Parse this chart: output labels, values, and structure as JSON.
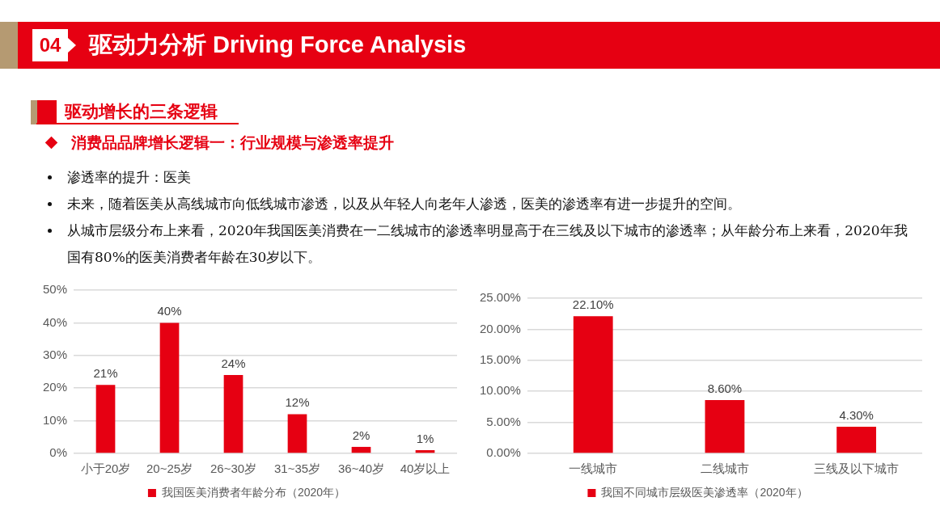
{
  "chart_data": [
    {
      "type": "bar",
      "title": "驱动力分析 Driving Force Analysis",
      "annotations": [
        "04",
        "驱动增长的三条逻辑",
        "消费品品牌增长逻辑一：行业规模与渗透率提升",
        "渗透率的提升：医美",
        "未来，随着医美从高线城市向低线城市渗透，以及从年轻人向老年人渗透，医美的渗透率有进一步提升的空间。",
        "从城市层级分布上来看，2020年我国医美消费在一二线城市的渗透率明显高于在三线及以下城市的渗透率；从年龄分布上来看，2020年我国有80%的医美消费者年龄在30岁以下。"
      ],
      "categories": [
        "小于20岁",
        "20~25岁",
        "26~30岁",
        "31~35岁",
        "36~40岁",
        "40岁以上"
      ],
      "series": [
        {
          "name": "我国医美消费者年龄分布（2020年）",
          "color": "#e60012",
          "values": [
            21,
            40,
            24,
            12,
            2,
            1
          ],
          "value_labels": [
            "21%",
            "40%",
            "24%",
            "12%",
            "2%",
            "1%"
          ]
        }
      ],
      "ylim": [
        0,
        50
      ],
      "yticks": [
        {
          "value": 0,
          "label": "0%"
        },
        {
          "value": 10,
          "label": "10%"
        },
        {
          "value": 20,
          "label": "20%"
        },
        {
          "value": 30,
          "label": "30%"
        },
        {
          "value": 40,
          "label": "40%"
        },
        {
          "value": 50,
          "label": "50%"
        }
      ],
      "grid": "y",
      "legend": "bottom"
    },
    {
      "type": "bar",
      "categories": [
        "一线城市",
        "二线城市",
        "三线及以下城市"
      ],
      "series": [
        {
          "name": "我国不同城市层级医美渗透率（2020年）",
          "color": "#e60012",
          "values": [
            22.1,
            8.6,
            4.3
          ],
          "value_labels": [
            "22.10%",
            "8.60%",
            "4.30%"
          ]
        }
      ],
      "ylim": [
        0,
        25
      ],
      "yticks": [
        {
          "value": 0,
          "label": "0.00%"
        },
        {
          "value": 5,
          "label": "5.00%"
        },
        {
          "value": 10,
          "label": "10.00%"
        },
        {
          "value": 15,
          "label": "15.00%"
        },
        {
          "value": 20,
          "label": "20.00%"
        },
        {
          "value": 25,
          "label": "25.00%"
        }
      ],
      "grid": "y",
      "legend": "bottom"
    }
  ]
}
